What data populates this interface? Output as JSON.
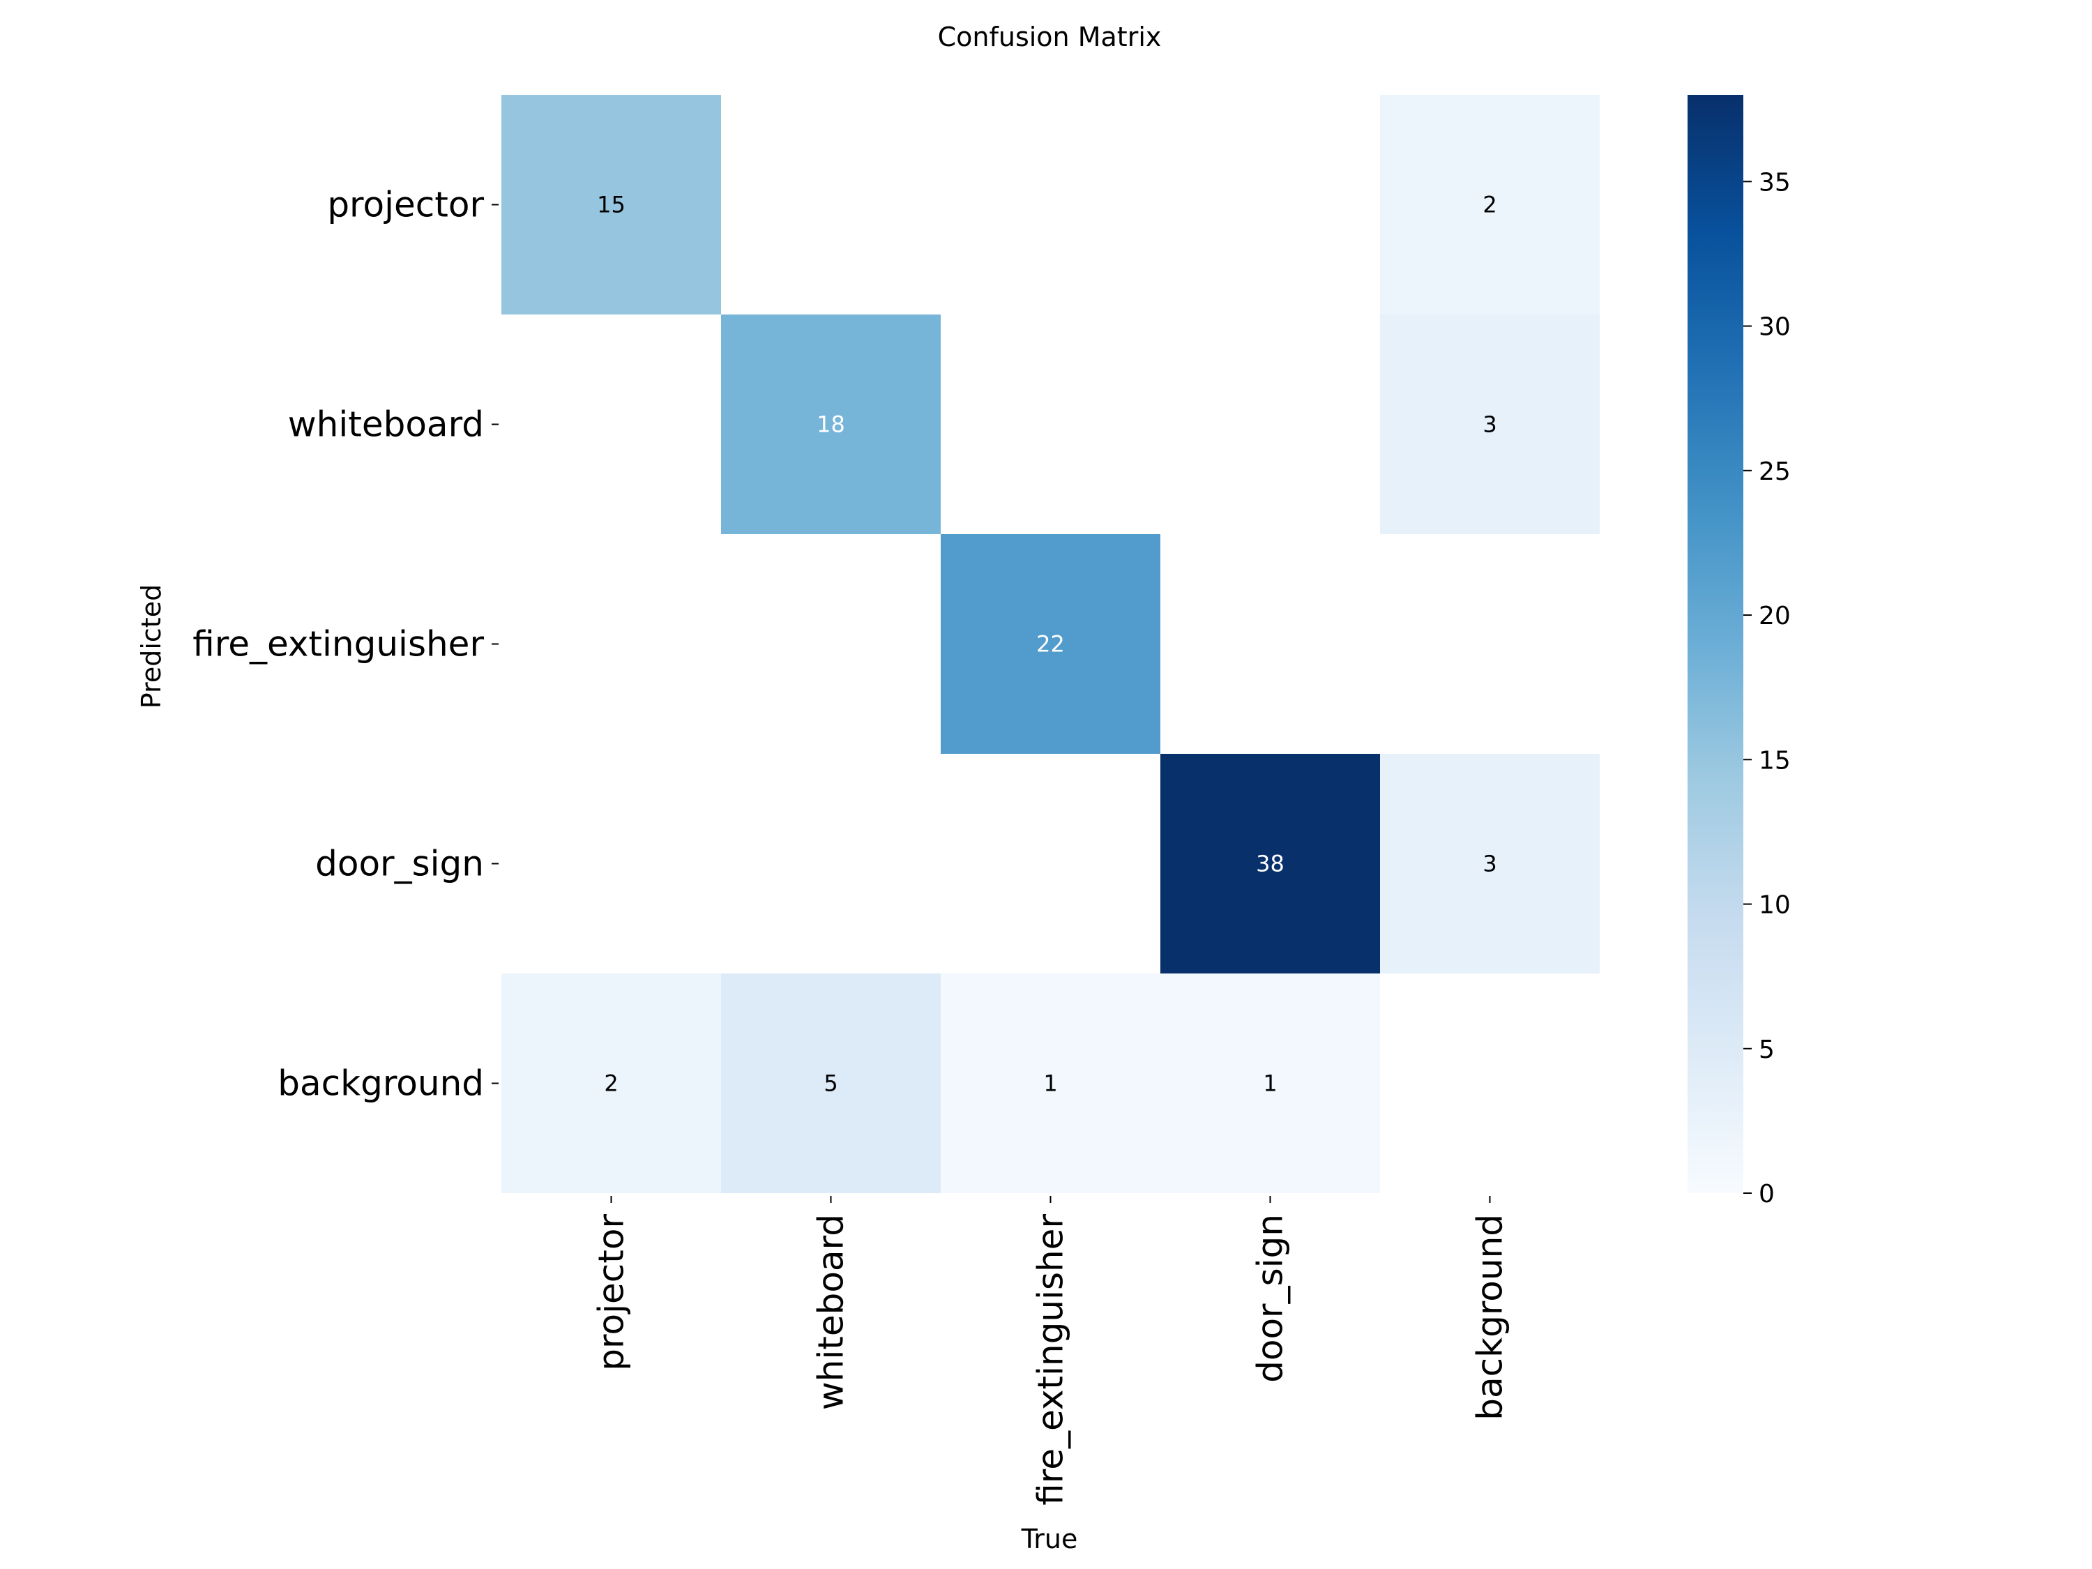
{
  "chart_data": {
    "type": "heatmap",
    "title": "Confusion Matrix",
    "xlabel": "True",
    "ylabel": "Predicted",
    "x_categories": [
      "projector",
      "whiteboard",
      "fire_extinguisher",
      "door_sign",
      "background"
    ],
    "y_categories": [
      "projector",
      "whiteboard",
      "fire_extinguisher",
      "door_sign",
      "background"
    ],
    "values": [
      [
        15,
        null,
        null,
        null,
        2
      ],
      [
        null,
        18,
        null,
        null,
        3
      ],
      [
        null,
        null,
        22,
        null,
        null
      ],
      [
        null,
        null,
        null,
        38,
        3
      ],
      [
        2,
        5,
        1,
        1,
        null
      ]
    ],
    "colormap": "Blues",
    "vmin": 0,
    "vmax": 38,
    "colorbar_ticks": [
      0,
      5,
      10,
      15,
      20,
      25,
      30,
      35
    ],
    "colors": {
      "low": "#f7fbff",
      "high": "#08306b"
    }
  }
}
